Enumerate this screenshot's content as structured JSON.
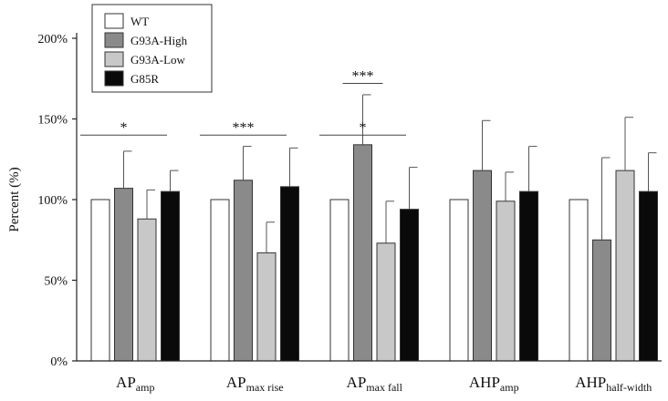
{
  "chart_data": {
    "type": "bar",
    "title": "",
    "xlabel": "",
    "ylabel": "Percent (%)",
    "ylim": [
      0,
      200
    ],
    "yticks": [
      "0%",
      "50%",
      "100%",
      "150%",
      "200%"
    ],
    "ytick_values": [
      0,
      50,
      100,
      150,
      200
    ],
    "grid": false,
    "legend_position": "top-left",
    "categories": [
      {
        "main": "AP",
        "sub": "amp"
      },
      {
        "main": "AP",
        "sub": "max rise"
      },
      {
        "main": "AP",
        "sub": "max fall"
      },
      {
        "main": "AHP",
        "sub": "amp"
      },
      {
        "main": "AHP",
        "sub": "half-width"
      }
    ],
    "series": [
      {
        "name": "WT",
        "color": "#ffffff",
        "values": [
          100,
          100,
          100,
          100,
          100
        ],
        "errors": [
          0,
          0,
          0,
          0,
          0
        ]
      },
      {
        "name": "G93A-High",
        "color": "#8a8a8a",
        "values": [
          107,
          112,
          134,
          118,
          75
        ],
        "errors": [
          23,
          21,
          31,
          31,
          51
        ]
      },
      {
        "name": "G93A-Low",
        "color": "#c8c8c8",
        "values": [
          88,
          67,
          73,
          99,
          118
        ],
        "errors": [
          18,
          19,
          26,
          18,
          33
        ]
      },
      {
        "name": "G85R",
        "color": "#0a0a0a",
        "values": [
          105,
          108,
          94,
          105,
          105
        ],
        "errors": [
          13,
          24,
          26,
          28,
          24
        ]
      }
    ],
    "annotations": [
      {
        "text": "*",
        "category": 0,
        "from_series": 0,
        "to_series": 2,
        "y": 140
      },
      {
        "text": "***",
        "category": 1,
        "from_series": 0,
        "to_series": 2,
        "y": 140
      },
      {
        "text": "*",
        "category": 2,
        "from_series": 0,
        "to_series": 2,
        "y": 140
      },
      {
        "text": "***",
        "category": 2,
        "from_series": 1,
        "to_series": 1,
        "y": 172
      }
    ]
  }
}
